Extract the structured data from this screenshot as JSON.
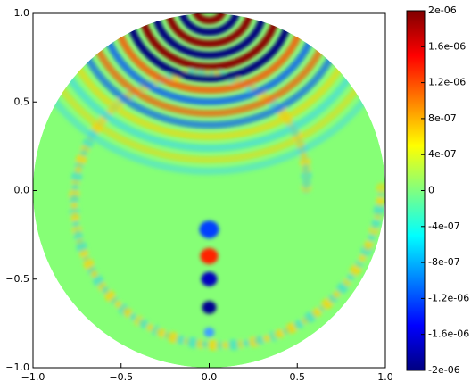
{
  "chart_data": {
    "type": "heatmap",
    "colormap": "jet",
    "xlim": [
      -1,
      1
    ],
    "ylim": [
      -1,
      1
    ],
    "xticks": [
      {
        "value": -1,
        "label": "−1.0"
      },
      {
        "value": -0.5,
        "label": "−0.5"
      },
      {
        "value": 0,
        "label": "0.0"
      },
      {
        "value": 0.5,
        "label": "0.5"
      },
      {
        "value": 1,
        "label": "1.0"
      }
    ],
    "yticks": [
      {
        "value": -1,
        "label": "−1.0"
      },
      {
        "value": -0.5,
        "label": "−0.5"
      },
      {
        "value": 0,
        "label": "0.0"
      },
      {
        "value": 0.5,
        "label": "0.5"
      },
      {
        "value": 1,
        "label": "1.0"
      }
    ],
    "colorbar": {
      "lim": [
        -2e-06,
        2e-06
      ],
      "ticks": [
        {
          "value": 2e-06,
          "label": "2e-06"
        },
        {
          "value": 1.6e-06,
          "label": "1.6e-06"
        },
        {
          "value": 1.2e-06,
          "label": "1.2e-06"
        },
        {
          "value": 8e-07,
          "label": "8e-07"
        },
        {
          "value": 4e-07,
          "label": "4e-07"
        },
        0,
        {
          "value": -4e-07,
          "label": "-4e-07"
        },
        {
          "value": -8e-07,
          "label": "-8e-07"
        },
        {
          "value": -1.2e-06,
          "label": "-1.2e-06"
        },
        {
          "value": -1.6e-06,
          "label": "-1.6e-06"
        },
        {
          "value": -2e-06,
          "label": "-2e-06"
        }
      ]
    }
  }
}
